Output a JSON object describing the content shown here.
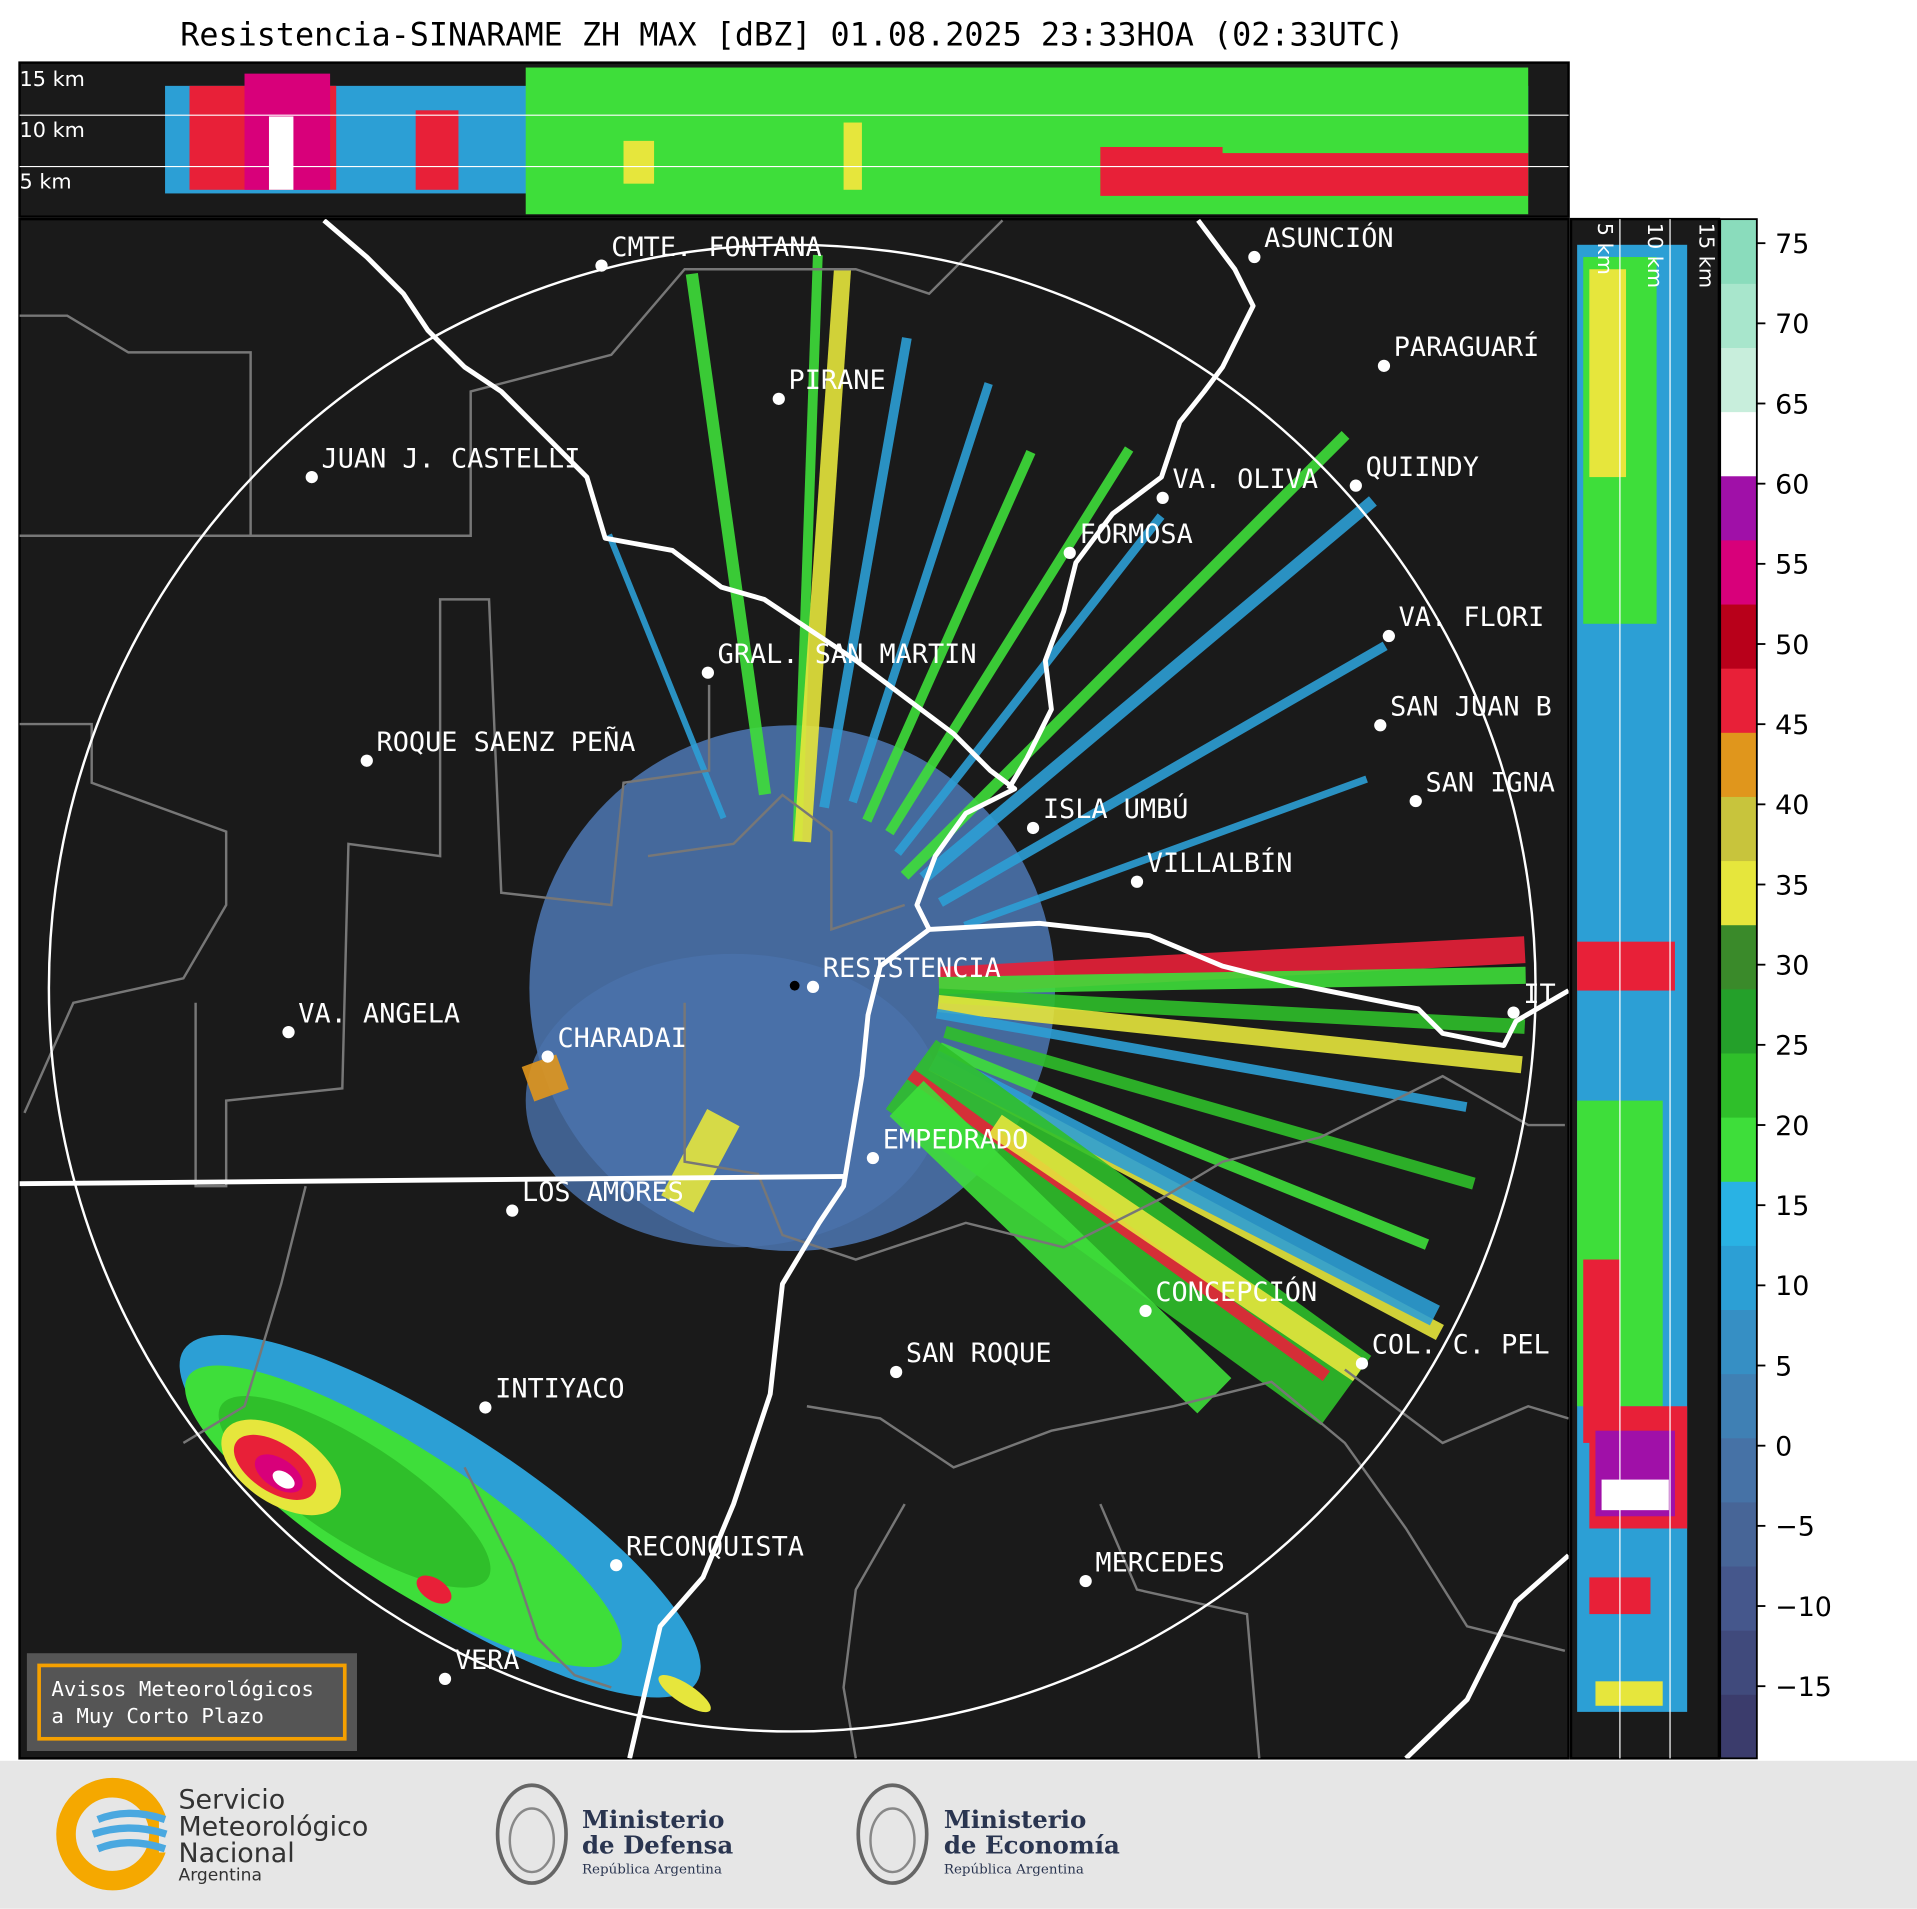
{
  "title": "Resistencia-SINARAME ZH MAX [dBZ] 01.08.2025 23:33HOA (02:33UTC)",
  "top_panel": {
    "height_labels": [
      "15 km",
      "10 km",
      "5 km"
    ]
  },
  "side_panel": {
    "height_labels": [
      "5 km",
      "10 km",
      "15 km"
    ]
  },
  "map": {
    "cities": [
      "CMTE. FONTANA",
      "PIRANE",
      "JUAN J. CASTELLI",
      "VA. OLIVA",
      "QUIINDY",
      "ASUNCIÓN",
      "PARAGUARÍ",
      "FORMOSA",
      "VA. FLORI",
      "GRAL. SAN MARTIN",
      "SAN JUAN B",
      "ROQUE SAENZ PEÑA",
      "SAN IGNA",
      "ISLA UMBÚ",
      "VILLALBÍN",
      "RESISTENCIA",
      "VA. ANGELA",
      "CHARADAI",
      "IT",
      "EMPEDRADO",
      "LOS AMORES",
      "CONCEPCIÓN",
      "SAN ROQUE",
      "COL. C. PEL",
      "INTIYACO",
      "RECONQUISTA",
      "MERCEDES",
      "VERA"
    ]
  },
  "colorbar": {
    "lim": [
      -19.5,
      76.5
    ],
    "ticks": [
      75,
      70,
      65,
      60,
      55,
      50,
      45,
      40,
      35,
      30,
      25,
      20,
      15,
      10,
      5,
      0,
      {
        "value": -5,
        "label": "−5"
      },
      {
        "value": -10,
        "label": "−10"
      },
      {
        "value": -15,
        "label": "−15"
      }
    ],
    "colors": [
      "#3b3c6c",
      "#404a7c",
      "#45578c",
      "#476597",
      "#4672a6",
      "#3f80b4",
      "#368fc4",
      "#2c9fd5",
      "#29b2e4",
      "#3ede3a",
      "#2fbf2a",
      "#24a02a",
      "#3a8a2a",
      "#e6e63c",
      "#c8c43c",
      "#e0961c",
      "#e82038",
      "#b8001a",
      "#d8007a",
      "#a010a8",
      "#ffffff",
      "#c8eedc",
      "#a8e6cc",
      "#8adcbc"
    ]
  },
  "notice": {
    "lines": [
      "Avisos Meteorológicos",
      "a Muy Corto Plazo"
    ]
  },
  "logos": [
    {
      "lines": [
        "Servicio",
        "Meteorológico",
        "Nacional",
        "Argentina"
      ]
    },
    {
      "lines": [
        "Ministerio",
        "de Defensa",
        "República Argentina"
      ]
    },
    {
      "lines": [
        "Ministerio",
        "de Economía",
        "República Argentina"
      ]
    }
  ]
}
